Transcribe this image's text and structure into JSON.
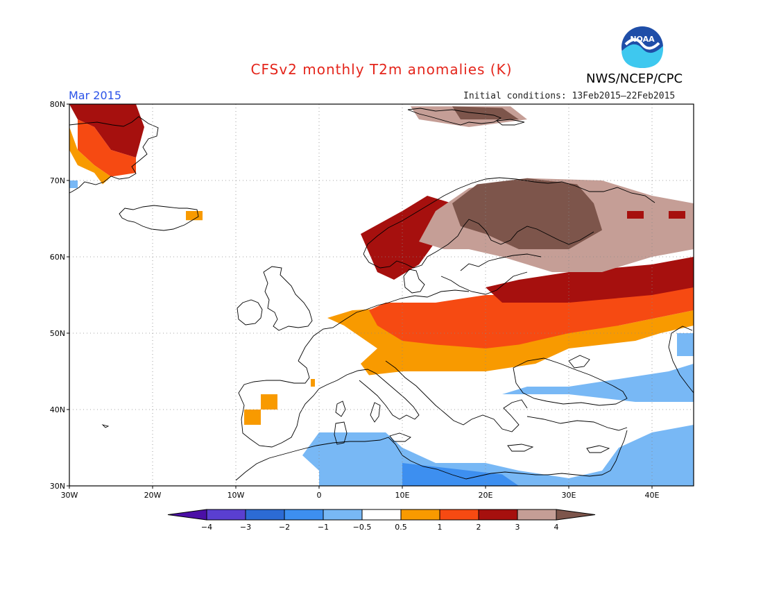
{
  "header": {
    "title": "CFSv2 monthly T2m anomalies (K)",
    "month": "Mar 2015",
    "agency": "NWS/NCEP/CPC",
    "initial_conditions": "Initial conditions: 13Feb2015–22Feb2015",
    "logo_text": "NOAA"
  },
  "map": {
    "lon_ticks": [
      {
        "lon": -30,
        "label": "30W"
      },
      {
        "lon": -20,
        "label": "20W"
      },
      {
        "lon": -10,
        "label": "10W"
      },
      {
        "lon": 0,
        "label": "0"
      },
      {
        "lon": 10,
        "label": "10E"
      },
      {
        "lon": 20,
        "label": "20E"
      },
      {
        "lon": 30,
        "label": "30E"
      },
      {
        "lon": 40,
        "label": "40E"
      }
    ],
    "lat_ticks": [
      {
        "lat": 30,
        "label": "30N"
      },
      {
        "lat": 40,
        "label": "40N"
      },
      {
        "lat": 50,
        "label": "50N"
      },
      {
        "lat": 60,
        "label": "60N"
      },
      {
        "lat": 70,
        "label": "70N"
      },
      {
        "lat": 80,
        "label": "80N"
      }
    ],
    "lon_range": [
      -30,
      45
    ],
    "lat_range": [
      30,
      80
    ],
    "colors": {
      "le_-4": "#4b0fa6",
      "-4_-3": "#5a3fd0",
      "-3_-2": "#2c6bd4",
      "-2_-1": "#3d8ff0",
      "-1_-0.5": "#78b8f5",
      "neutral": "#ffffff",
      "0.5_1": "#f89a00",
      "1_2": "#f64a12",
      "2_3": "#a6100e",
      "3_4": "#c59e96",
      "gt_4": "#7d554b"
    },
    "anomaly_regions": [
      {
        "name": "greenland",
        "polys": [
          {
            "c": "2_3",
            "pts": [
              [
                -30,
                80
              ],
              [
                -22,
                80
              ],
              [
                -21,
                77
              ],
              [
                -22,
                73
              ],
              [
                -25,
                74
              ],
              [
                -27,
                77
              ],
              [
                -29,
                78
              ]
            ]
          },
          {
            "c": "1_2",
            "pts": [
              [
                -29,
                78
              ],
              [
                -27,
                77
              ],
              [
                -25,
                74
              ],
              [
                -22,
                73
              ],
              [
                -22,
                71
              ],
              [
                -25,
                70.5
              ],
              [
                -27,
                72
              ],
              [
                -29,
                74
              ]
            ]
          },
          {
            "c": "0.5_1",
            "pts": [
              [
                -30,
                77
              ],
              [
                -29,
                74
              ],
              [
                -27,
                72
              ],
              [
                -25,
                70.5
              ],
              [
                -26,
                69.5
              ],
              [
                -27,
                71
              ],
              [
                -29,
                72
              ],
              [
                -30,
                74
              ]
            ]
          },
          {
            "c": "-1_-0.5",
            "pts": [
              [
                -30,
                70
              ],
              [
                -29,
                70
              ],
              [
                -29,
                69
              ],
              [
                -30,
                69
              ]
            ]
          }
        ]
      },
      {
        "name": "iceland",
        "polys": [
          {
            "c": "0.5_1",
            "pts": [
              [
                -16,
                66
              ],
              [
                -14,
                66
              ],
              [
                -14,
                64.8
              ],
              [
                -16,
                64.8
              ]
            ]
          }
        ]
      },
      {
        "name": "svalbard",
        "polys": [
          {
            "c": "3_4",
            "pts": [
              [
                11,
                79.7
              ],
              [
                23,
                79.7
              ],
              [
                25,
                78
              ],
              [
                18,
                77
              ],
              [
                12,
                78
              ]
            ]
          },
          {
            "c": "gt_4",
            "pts": [
              [
                16,
                79.7
              ],
              [
                22,
                79.5
              ],
              [
                24,
                78
              ],
              [
                17,
                78
              ]
            ]
          }
        ]
      },
      {
        "name": "europe",
        "polys": [
          {
            "c": "0.5_1",
            "pts": [
              [
                4,
                53
              ],
              [
                12,
                53.5
              ],
              [
                24,
                52
              ],
              [
                36,
                51
              ],
              [
                45,
                53
              ],
              [
                45,
                51
              ],
              [
                41,
                50
              ],
              [
                38,
                49
              ],
              [
                30,
                48
              ],
              [
                26,
                46
              ],
              [
                20,
                45
              ],
              [
                14,
                45
              ],
              [
                10,
                45
              ],
              [
                6,
                44.5
              ],
              [
                5,
                46
              ],
              [
                7,
                48
              ],
              [
                3,
                51
              ],
              [
                1,
                52
              ]
            ]
          },
          {
            "c": "1_2",
            "pts": [
              [
                8,
                54
              ],
              [
                14,
                54
              ],
              [
                20,
                55
              ],
              [
                30,
                55
              ],
              [
                40,
                56
              ],
              [
                45,
                56
              ],
              [
                45,
                53
              ],
              [
                36,
                51
              ],
              [
                30,
                50
              ],
              [
                24,
                48.5
              ],
              [
                20,
                48
              ],
              [
                14,
                48.5
              ],
              [
                10,
                49
              ],
              [
                7,
                51
              ],
              [
                6,
                53
              ]
            ]
          },
          {
            "c": "2_3",
            "pts": [
              [
                5,
                63
              ],
              [
                10,
                66
              ],
              [
                13,
                68
              ],
              [
                16,
                67
              ],
              [
                14,
                62
              ],
              [
                12,
                59
              ],
              [
                9,
                57
              ],
              [
                7,
                58
              ]
            ]
          },
          {
            "c": "2_3",
            "pts": [
              [
                20,
                56
              ],
              [
                24,
                57
              ],
              [
                30,
                58
              ],
              [
                40,
                59
              ],
              [
                45,
                60
              ],
              [
                45,
                56
              ],
              [
                40,
                55
              ],
              [
                30,
                54
              ],
              [
                22,
                54
              ]
            ]
          },
          {
            "c": "3_4",
            "pts": [
              [
                12,
                62
              ],
              [
                14,
                66
              ],
              [
                18,
                69
              ],
              [
                25,
                70.3
              ],
              [
                34,
                70
              ],
              [
                40,
                68
              ],
              [
                45,
                67
              ],
              [
                45,
                61
              ],
              [
                40,
                60
              ],
              [
                34,
                58
              ],
              [
                28,
                58
              ],
              [
                22,
                60
              ],
              [
                18,
                61
              ],
              [
                15,
                61
              ]
            ]
          },
          {
            "c": "gt_4",
            "pts": [
              [
                16,
                67
              ],
              [
                19,
                69.5
              ],
              [
                25,
                70.3
              ],
              [
                31,
                69.5
              ],
              [
                33,
                67
              ],
              [
                34,
                63.5
              ],
              [
                30,
                61
              ],
              [
                24,
                61
              ],
              [
                20,
                63
              ],
              [
                17,
                64
              ]
            ]
          },
          {
            "c": "2_3",
            "pts": [
              [
                37,
                66
              ],
              [
                39,
                66
              ],
              [
                39,
                65
              ],
              [
                37,
                65
              ]
            ]
          },
          {
            "c": "2_3",
            "pts": [
              [
                42,
                66
              ],
              [
                44,
                66
              ],
              [
                44,
                65
              ],
              [
                42,
                65
              ]
            ]
          },
          {
            "c": "0.5_1",
            "pts": [
              [
                -7,
                42
              ],
              [
                -5,
                42
              ],
              [
                -5,
                40
              ],
              [
                -7,
                40
              ],
              [
                -7,
                38
              ],
              [
                -9,
                38
              ],
              [
                -9,
                40
              ],
              [
                -7,
                40
              ]
            ]
          },
          {
            "c": "0.5_1",
            "pts": [
              [
                -1,
                44
              ],
              [
                -0.5,
                44
              ],
              [
                -0.5,
                43
              ],
              [
                -1,
                43
              ]
            ]
          }
        ]
      },
      {
        "name": "cold_south",
        "polys": [
          {
            "c": "-1_-0.5",
            "pts": [
              [
                0,
                37
              ],
              [
                8,
                37
              ],
              [
                10,
                35
              ],
              [
                14,
                33
              ],
              [
                20,
                33
              ],
              [
                24,
                32
              ],
              [
                30,
                31
              ],
              [
                34,
                32
              ],
              [
                36,
                35
              ],
              [
                40,
                37
              ],
              [
                45,
                38
              ],
              [
                45,
                30
              ],
              [
                0,
                30
              ],
              [
                0,
                32
              ],
              [
                -2,
                34
              ]
            ]
          },
          {
            "c": "-2_-1",
            "pts": [
              [
                10,
                33
              ],
              [
                18,
                32
              ],
              [
                22,
                31.5
              ],
              [
                24,
                30
              ],
              [
                10,
                30
              ]
            ]
          },
          {
            "c": "-1_-0.5",
            "pts": [
              [
                22,
                42
              ],
              [
                30,
                42
              ],
              [
                38,
                41
              ],
              [
                45,
                41
              ],
              [
                45,
                46
              ],
              [
                42,
                45
              ],
              [
                36,
                44
              ],
              [
                30,
                43
              ],
              [
                25,
                43
              ]
            ]
          },
          {
            "c": "-1_-0.5",
            "pts": [
              [
                43,
                50
              ],
              [
                45,
                50
              ],
              [
                45,
                47
              ],
              [
                43,
                47
              ]
            ]
          }
        ]
      }
    ]
  },
  "colorbar": {
    "labels": [
      "−4",
      "−3",
      "−2",
      "−1",
      "−0.5",
      "0.5",
      "1",
      "2",
      "3",
      "4"
    ],
    "bins": [
      "le_-4",
      "-4_-3",
      "-3_-2",
      "-2_-1",
      "-1_-0.5",
      "neutral",
      "0.5_1",
      "1_2",
      "2_3",
      "3_4",
      "gt_4"
    ]
  }
}
